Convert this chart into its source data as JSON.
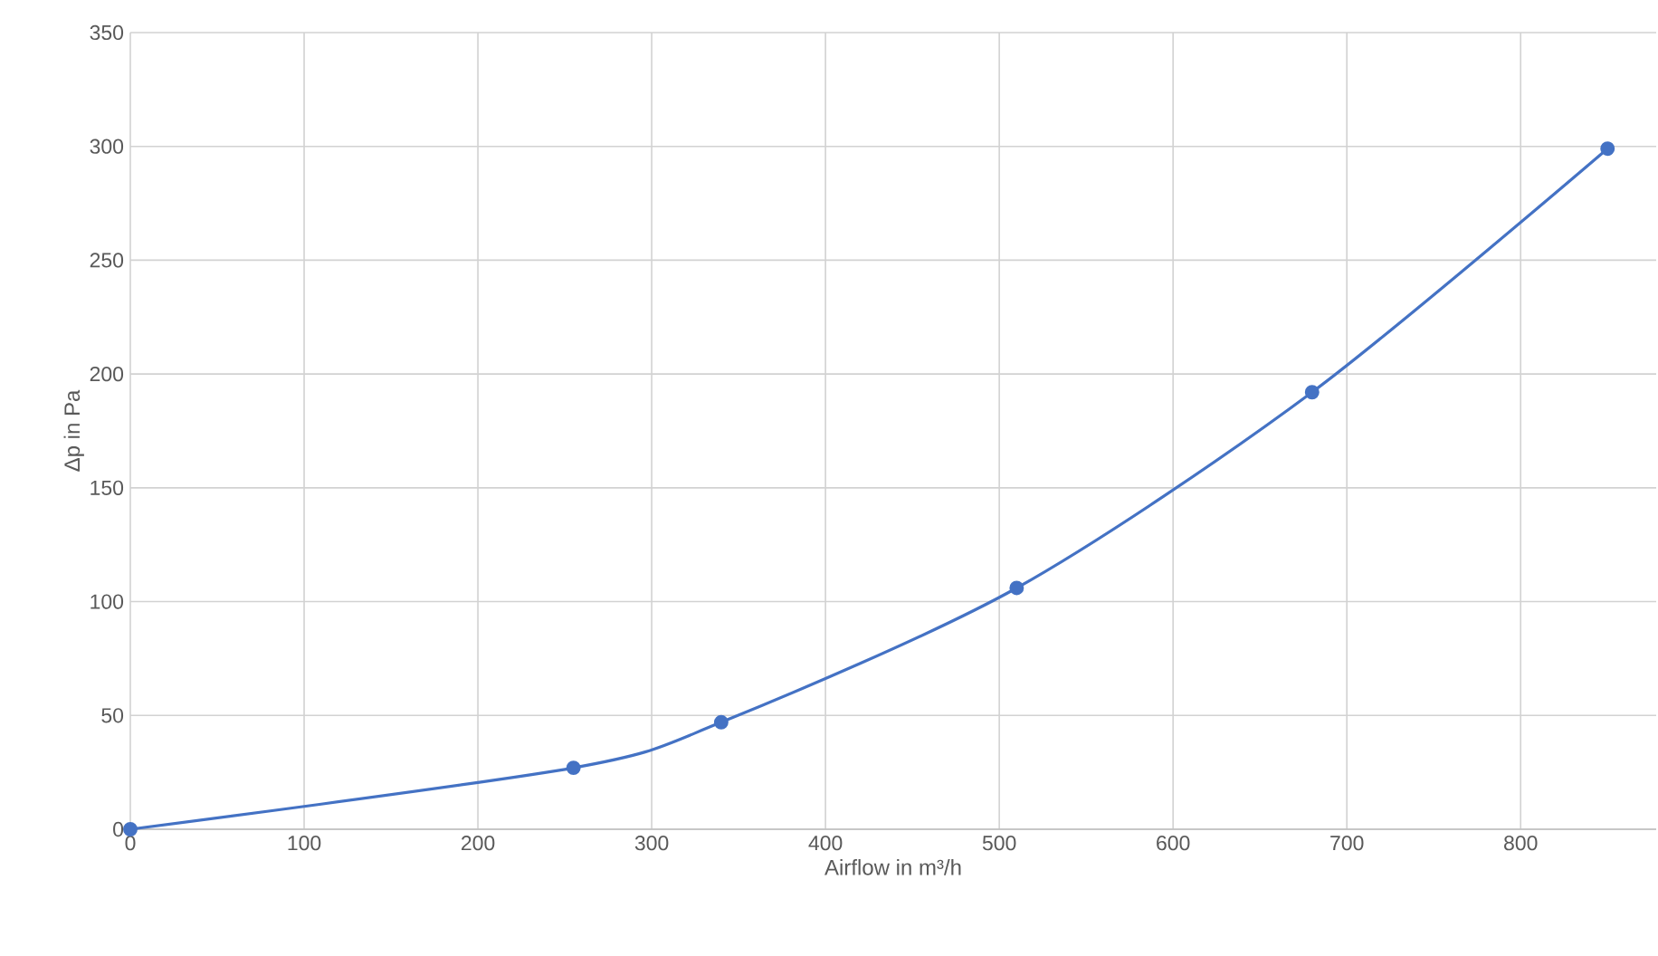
{
  "chart_data": {
    "type": "line",
    "xlabel": "Airflow in m³/h",
    "ylabel": "Δp in Pa",
    "x": [
      0,
      255,
      340,
      510,
      680,
      850
    ],
    "series": [
      {
        "color": "#4472c4",
        "values": [
          0,
          27,
          47,
          106,
          192,
          299
        ]
      }
    ],
    "xlim": [
      0,
      878
    ],
    "xticks": [
      0,
      100,
      200,
      300,
      400,
      500,
      600,
      700,
      800
    ],
    "ylim": [
      0,
      350
    ],
    "yticks": [
      0,
      50,
      100,
      150,
      200,
      250,
      300,
      350
    ],
    "grid": true,
    "marker": "circle",
    "line_style": "solid"
  }
}
